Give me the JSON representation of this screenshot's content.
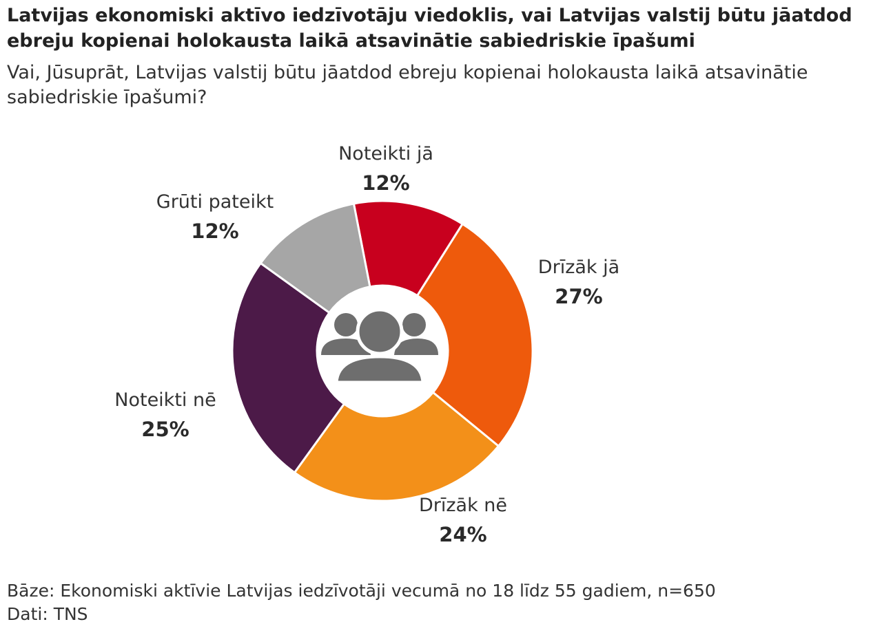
{
  "title": "Latvijas ekonomiski aktīvo iedzīvotāju viedoklis, vai Latvijas valstij būtu jāatdod ebreju kopienai holokausta laikā atsavinātie sabiedriskie īpašumi",
  "subtitle": "Vai, Jūsuprāt, Latvijas valstij būtu jāatdod ebreju kopienai holokausta laikā atsavinātie sabiedriskie īpašumi?",
  "footer": {
    "base": "Bāze: Ekonomiski aktīvie Latvijas iedzīvotāji vecumā no 18 līdz 55 gadiem, n=650",
    "source": "Dati: TNS"
  },
  "center_icon": "group-of-people-icon",
  "chart_data": {
    "type": "pie",
    "donut": true,
    "slices": [
      {
        "label": "Noteikti jā",
        "value": 12,
        "display": "12%",
        "color": "#c8001e"
      },
      {
        "label": "Drīzāk jā",
        "value": 27,
        "display": "27%",
        "color": "#ee5a0c"
      },
      {
        "label": "Drīzāk nē",
        "value": 24,
        "display": "24%",
        "color": "#f39019"
      },
      {
        "label": "Noteikti nē",
        "value": 25,
        "display": "25%",
        "color": "#4c1a48"
      },
      {
        "label": "Grūti pateikt",
        "value": 12,
        "display": "12%",
        "color": "#a6a6a6"
      }
    ]
  }
}
